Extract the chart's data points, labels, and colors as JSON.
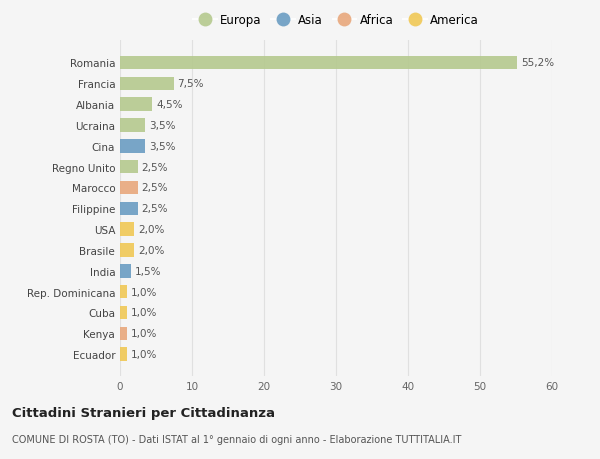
{
  "countries": [
    "Romania",
    "Francia",
    "Albania",
    "Ucraina",
    "Cina",
    "Regno Unito",
    "Marocco",
    "Filippine",
    "USA",
    "Brasile",
    "India",
    "Rep. Dominicana",
    "Cuba",
    "Kenya",
    "Ecuador"
  ],
  "values": [
    55.2,
    7.5,
    4.5,
    3.5,
    3.5,
    2.5,
    2.5,
    2.5,
    2.0,
    2.0,
    1.5,
    1.0,
    1.0,
    1.0,
    1.0
  ],
  "labels": [
    "55,2%",
    "7,5%",
    "4,5%",
    "3,5%",
    "3,5%",
    "2,5%",
    "2,5%",
    "2,5%",
    "2,0%",
    "2,0%",
    "1,5%",
    "1,0%",
    "1,0%",
    "1,0%",
    "1,0%"
  ],
  "continents": [
    "Europa",
    "Europa",
    "Europa",
    "Europa",
    "Asia",
    "Europa",
    "Africa",
    "Asia",
    "America",
    "America",
    "Asia",
    "America",
    "America",
    "Africa",
    "America"
  ],
  "continent_colors": {
    "Europa": "#b5c98e",
    "Asia": "#6b9dc2",
    "Africa": "#e8a87c",
    "America": "#f0c855"
  },
  "legend_order": [
    "Europa",
    "Asia",
    "Africa",
    "America"
  ],
  "title1": "Cittadini Stranieri per Cittadinanza",
  "title2": "COMUNE DI ROSTA (TO) - Dati ISTAT al 1° gennaio di ogni anno - Elaborazione TUTTITALIA.IT",
  "xlim": [
    0,
    60
  ],
  "xticks": [
    0,
    10,
    20,
    30,
    40,
    50,
    60
  ],
  "background_color": "#f5f5f5",
  "grid_color": "#e0e0e0"
}
